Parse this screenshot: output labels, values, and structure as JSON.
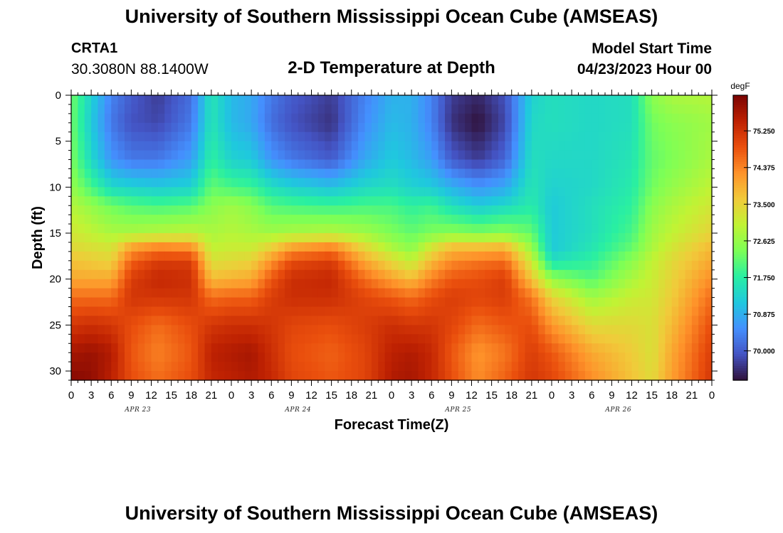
{
  "header": {
    "title": "University of Southern Mississippi Ocean Cube (AMSEAS)",
    "station_id": "CRTA1",
    "station_coords": "30.3080N  88.1400W",
    "plot_title": "2-D Temperature at Depth",
    "model_label": "Model Start Time",
    "model_time": "04/23/2023 Hour 00"
  },
  "footer": {
    "title": "University of Southern Mississippi Ocean Cube (AMSEAS)"
  },
  "chart_data": {
    "type": "heatmap",
    "title": "2-D Temperature at Depth",
    "xlabel": "Forecast Time(Z)",
    "ylabel": "Depth (ft)",
    "x_ticks": [
      "0",
      "3",
      "6",
      "9",
      "12",
      "15",
      "18",
      "21",
      "0",
      "3",
      "6",
      "9",
      "12",
      "15",
      "18",
      "21",
      "0",
      "3",
      "6",
      "9",
      "12",
      "15",
      "18",
      "21",
      "0",
      "3",
      "6",
      "9",
      "12",
      "15",
      "18",
      "21",
      "0"
    ],
    "day_labels": [
      "APR 23",
      "APR 24",
      "APR 25",
      "APR 26"
    ],
    "y_ticks": [
      0,
      5,
      10,
      15,
      20,
      25,
      30
    ],
    "xlim_hours": [
      0,
      96
    ],
    "ylim_ft": [
      0,
      31
    ],
    "colorbar": {
      "unit": "degF",
      "min": 69.3,
      "max": 76.1,
      "ticks": [
        "75.250",
        "74.375",
        "73.500",
        "72.625",
        "71.750",
        "70.875",
        "70.000"
      ],
      "tick_values": [
        75.25,
        74.375,
        73.5,
        72.625,
        71.75,
        70.875,
        70.0
      ],
      "colors": [
        "#30123b",
        "#4454c4",
        "#4490fe",
        "#1fc8de",
        "#29efa2",
        "#7dff56",
        "#c1f334",
        "#f1ca3a",
        "#fe922a",
        "#ea4f0d",
        "#be2102",
        "#7a0403"
      ]
    },
    "depth_profile_anchors_ft": [
      0,
      3,
      7,
      10,
      12,
      15,
      16.5,
      18,
      20,
      22,
      25,
      28,
      31
    ],
    "time_columns": [
      {
        "hour": 0,
        "temps": [
          72.3,
          72.3,
          72.4,
          72.6,
          72.9,
          73.2,
          73.4,
          73.7,
          74.0,
          74.6,
          75.2,
          75.7,
          76.0
        ]
      },
      {
        "hour": 3,
        "temps": [
          71.3,
          71.2,
          71.4,
          72.0,
          72.6,
          73.0,
          73.3,
          73.6,
          74.0,
          74.6,
          75.3,
          75.8,
          75.9
        ]
      },
      {
        "hour": 6,
        "temps": [
          70.4,
          70.3,
          70.6,
          71.4,
          72.3,
          72.8,
          73.2,
          73.5,
          74.0,
          74.6,
          75.2,
          75.6,
          75.5
        ]
      },
      {
        "hour": 9,
        "temps": [
          70.0,
          69.9,
          70.3,
          71.3,
          72.1,
          72.8,
          74.0,
          74.7,
          75.1,
          75.2,
          74.9,
          74.8,
          74.9
        ]
      },
      {
        "hour": 13,
        "temps": [
          69.7,
          69.8,
          70.3,
          71.2,
          72.0,
          72.9,
          74.3,
          75.1,
          75.4,
          75.2,
          74.6,
          74.4,
          74.6
        ]
      },
      {
        "hour": 18,
        "temps": [
          70.2,
          70.3,
          70.7,
          71.3,
          72.1,
          73.0,
          74.2,
          75.1,
          75.3,
          75.2,
          74.9,
          74.8,
          74.9
        ]
      },
      {
        "hour": 21,
        "temps": [
          71.6,
          71.6,
          71.8,
          72.2,
          72.5,
          72.8,
          73.0,
          73.3,
          73.8,
          74.6,
          75.2,
          75.5,
          75.4
        ]
      },
      {
        "hour": 24,
        "temps": [
          71.0,
          71.0,
          71.3,
          72.0,
          72.7,
          72.9,
          73.1,
          73.4,
          73.9,
          74.7,
          75.3,
          75.6,
          75.5
        ]
      },
      {
        "hour": 27,
        "temps": [
          70.8,
          70.8,
          71.2,
          71.9,
          72.5,
          72.8,
          73.1,
          73.5,
          74.0,
          74.7,
          75.3,
          75.7,
          75.6
        ]
      },
      {
        "hour": 30,
        "temps": [
          70.3,
          70.2,
          70.6,
          71.5,
          72.1,
          72.7,
          73.5,
          74.2,
          74.8,
          75.1,
          75.2,
          75.3,
          75.4
        ]
      },
      {
        "hour": 33,
        "temps": [
          70.0,
          69.9,
          70.3,
          71.3,
          72.0,
          72.8,
          74.0,
          74.9,
          75.3,
          75.3,
          75.0,
          74.9,
          75.0
        ]
      },
      {
        "hour": 39,
        "temps": [
          69.7,
          69.6,
          70.0,
          71.1,
          71.9,
          72.9,
          74.3,
          75.1,
          75.4,
          75.3,
          74.9,
          74.7,
          74.8
        ]
      },
      {
        "hour": 44,
        "temps": [
          70.4,
          70.5,
          70.8,
          71.4,
          72.0,
          72.7,
          73.4,
          74.0,
          74.6,
          75.0,
          75.1,
          75.0,
          75.0
        ]
      },
      {
        "hour": 48,
        "temps": [
          70.9,
          71.0,
          71.2,
          71.5,
          72.0,
          72.4,
          72.8,
          73.4,
          74.1,
          74.8,
          75.3,
          75.5,
          75.6
        ]
      },
      {
        "hour": 51,
        "temps": [
          70.9,
          70.9,
          71.0,
          71.3,
          71.8,
          72.2,
          72.5,
          73.0,
          73.8,
          74.6,
          75.2,
          75.6,
          75.7
        ]
      },
      {
        "hour": 54,
        "temps": [
          70.4,
          70.4,
          70.7,
          71.2,
          71.9,
          72.4,
          73.2,
          73.8,
          74.4,
          74.9,
          75.2,
          75.4,
          75.4
        ]
      },
      {
        "hour": 57,
        "temps": [
          69.7,
          69.6,
          70.0,
          70.9,
          71.5,
          72.5,
          73.7,
          74.3,
          74.8,
          75.1,
          75.0,
          74.8,
          74.9
        ]
      },
      {
        "hour": 61,
        "temps": [
          69.5,
          69.3,
          69.7,
          70.6,
          71.2,
          72.4,
          73.7,
          74.5,
          74.9,
          75.0,
          74.6,
          74.2,
          74.3
        ]
      },
      {
        "hour": 65,
        "temps": [
          69.9,
          69.8,
          70.1,
          70.8,
          71.4,
          72.5,
          73.8,
          74.6,
          75.1,
          75.1,
          74.8,
          74.5,
          74.7
        ]
      },
      {
        "hour": 69,
        "temps": [
          71.3,
          71.4,
          71.5,
          71.6,
          71.7,
          72.2,
          72.6,
          73.1,
          73.7,
          74.5,
          74.9,
          75.1,
          75.2
        ]
      },
      {
        "hour": 72,
        "temps": [
          71.5,
          71.5,
          71.4,
          71.3,
          71.2,
          71.2,
          71.2,
          71.5,
          72.6,
          73.5,
          74.2,
          74.8,
          75.0
        ]
      },
      {
        "hour": 78,
        "temps": [
          71.4,
          71.4,
          71.4,
          71.4,
          71.5,
          71.5,
          71.6,
          71.8,
          72.1,
          72.7,
          73.4,
          74.0,
          74.3
        ]
      },
      {
        "hour": 84,
        "temps": [
          71.5,
          71.5,
          71.6,
          71.7,
          71.8,
          72.0,
          72.2,
          72.5,
          72.8,
          73.1,
          73.4,
          73.6,
          73.7
        ]
      },
      {
        "hour": 87,
        "temps": [
          72.5,
          72.3,
          72.2,
          72.3,
          72.5,
          72.7,
          72.8,
          73.0,
          73.1,
          73.2,
          73.3,
          73.3,
          73.4
        ]
      },
      {
        "hour": 90,
        "temps": [
          72.8,
          72.5,
          72.4,
          72.6,
          72.8,
          73.0,
          73.2,
          73.4,
          73.5,
          73.6,
          73.8,
          74.0,
          74.1
        ]
      },
      {
        "hour": 96,
        "temps": [
          72.9,
          72.7,
          72.8,
          73.0,
          73.2,
          73.5,
          73.8,
          74.0,
          74.3,
          74.6,
          74.9,
          75.1,
          75.2
        ]
      }
    ]
  }
}
